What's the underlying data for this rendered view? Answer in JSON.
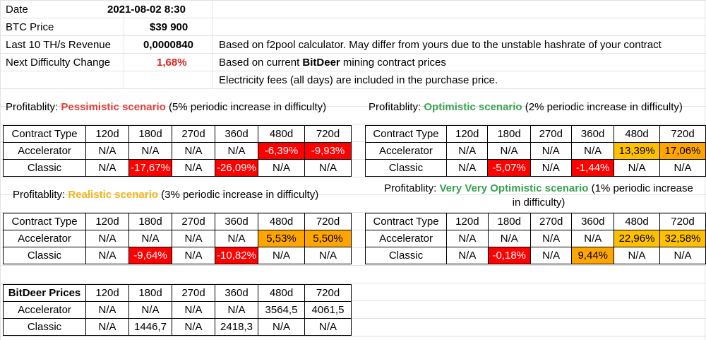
{
  "summary": {
    "date_label": "Date",
    "date_value": "2021-08-02 8:30",
    "btc_label": "BTC Price",
    "btc_value": "$39 900",
    "revenue_label": "Last 10 TH/s Revenue",
    "revenue_value": "0,0000840",
    "difficulty_label": "Next Difficulty Change",
    "difficulty_value": "1,68%"
  },
  "notes": {
    "line1": "Based on f2pool calculator. May differ from yours due to the unstable hashrate of your contract",
    "line2_pre": "Based on current ",
    "line2_bold": "BitDeer",
    "line2_post": " mining contract prices",
    "line3": "Electricity fees (all days) are included in the purchase price."
  },
  "columns": [
    "Contract Type",
    "120d",
    "180d",
    "270d",
    "360d",
    "480d",
    "720d"
  ],
  "scenarios": {
    "pessimistic": {
      "prefix": "Profitablity: ",
      "name": "Pessimistic scenario",
      "suffix": " (5% periodic increase in difficulty)",
      "rows": [
        [
          "Accelerator",
          "N/A",
          "N/A",
          "N/A",
          "N/A",
          "-6,39%",
          "-9,93%"
        ],
        [
          "Classic",
          "N/A",
          "-17,67%",
          "N/A",
          "-26,09%",
          "N/A",
          "N/A"
        ]
      ]
    },
    "optimistic": {
      "prefix": "Profitablity: ",
      "name": "Optimistic scenario",
      "suffix": " (2% periodic increase in difficulty)",
      "rows": [
        [
          "Accelerator",
          "N/A",
          "N/A",
          "N/A",
          "N/A",
          "13,39%",
          "17,06%"
        ],
        [
          "Classic",
          "N/A",
          "-5,07%",
          "N/A",
          "-1,44%",
          "N/A",
          "N/A"
        ]
      ]
    },
    "realistic": {
      "prefix": "Profitablity: ",
      "name": "Realistic scenario",
      "suffix": " (3% periodic increase in difficulty)",
      "rows": [
        [
          "Accelerator",
          "N/A",
          "N/A",
          "N/A",
          "N/A",
          "5,53%",
          "5,50%"
        ],
        [
          "Classic",
          "N/A",
          "-9,64%",
          "N/A",
          "-10,82%",
          "N/A",
          "N/A"
        ]
      ]
    },
    "very_optimistic": {
      "prefix": "Profitablity: ",
      "name": "Very Very Optimistic scenario",
      "suffix_line1": " (1% periodic increase",
      "suffix_line2": "in difficulty)",
      "rows": [
        [
          "Accelerator",
          "N/A",
          "N/A",
          "N/A",
          "N/A",
          "22,96%",
          "32,58%"
        ],
        [
          "Classic",
          "N/A",
          "-0,18%",
          "N/A",
          "9,44%",
          "N/A",
          "N/A"
        ]
      ]
    }
  },
  "prices": {
    "header": [
      "BitDeer Prices",
      "120d",
      "180d",
      "270d",
      "360d",
      "480d",
      "720d"
    ],
    "rows": [
      [
        "Accelerator",
        "N/A",
        "N/A",
        "N/A",
        "N/A",
        "3564,5",
        "4061,5"
      ],
      [
        "Classic",
        "N/A",
        "1446,7",
        "N/A",
        "2418,3",
        "N/A",
        "N/A"
      ]
    ]
  },
  "colors": {
    "negative": "#ff0000",
    "mid": "#ffa500",
    "positive": "#ffc000",
    "pessimistic": "#e0403a",
    "optimistic": "#3aa252",
    "realistic": "#f2b418",
    "gridline": "#e2e2e2"
  }
}
